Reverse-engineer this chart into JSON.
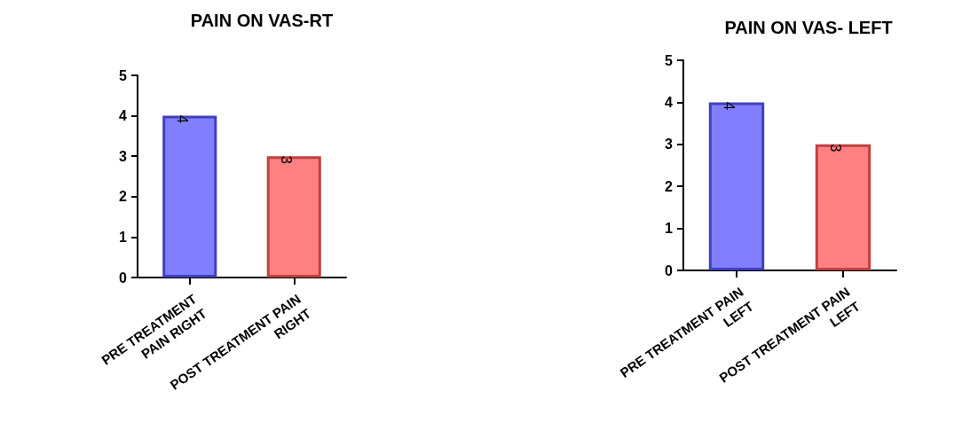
{
  "chart_data": [
    {
      "type": "bar",
      "title": "PAIN ON VAS-RT",
      "categories": [
        "PRE TREATMENT\nPAIN RIGHT",
        "POST TREATMENT PAIN\nRIGHT"
      ],
      "values": [
        4,
        3
      ],
      "colors": [
        "#8080ff",
        "#ff8080"
      ],
      "ylim": [
        0,
        5
      ],
      "yticks": [
        0,
        1,
        2,
        3,
        4,
        5
      ],
      "data_labels": true,
      "grid": false
    },
    {
      "type": "bar",
      "title": "PAIN ON VAS- LEFT",
      "categories": [
        "PRE TREATMENT PAIN\nLEFT",
        "POST TREATMENT PAIN\nLEFT"
      ],
      "values": [
        4,
        3
      ],
      "colors": [
        "#8080ff",
        "#ff8080"
      ],
      "ylim": [
        0,
        5
      ],
      "yticks": [
        0,
        1,
        2,
        3,
        4,
        5
      ],
      "data_labels": true,
      "grid": false
    }
  ]
}
